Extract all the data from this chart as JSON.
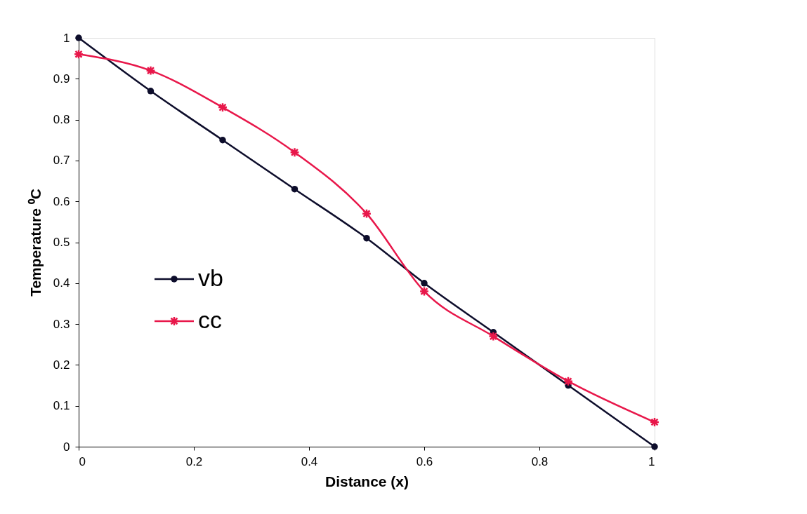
{
  "chart_data": {
    "type": "line",
    "xlabel": "Distance (x)",
    "ylabel": "Temperature ⁰C",
    "x": [
      0,
      0.125,
      0.25,
      0.375,
      0.5,
      0.6,
      0.72,
      0.85,
      1
    ],
    "series": [
      {
        "name": "vb",
        "color": "#0d0d2b",
        "marker": "circle",
        "values": [
          1,
          0.87,
          0.75,
          0.63,
          0.51,
          0.4,
          0.28,
          0.15,
          0
        ]
      },
      {
        "name": "cc",
        "color": "#e8174a",
        "marker": "cross",
        "values": [
          0.96,
          0.92,
          0.83,
          0.72,
          0.57,
          0.38,
          0.27,
          0.16,
          0.06
        ]
      }
    ],
    "xlim": [
      0,
      1
    ],
    "xticks": [
      0,
      0.2,
      0.4,
      0.6,
      0.8,
      1
    ],
    "ylim": [
      0,
      1
    ],
    "yticks": [
      0,
      0.1,
      0.2,
      0.3,
      0.4,
      0.5,
      0.6,
      0.7,
      0.8,
      0.9,
      1
    ],
    "grid": false,
    "legend": "center left",
    "line_style": "solid"
  }
}
